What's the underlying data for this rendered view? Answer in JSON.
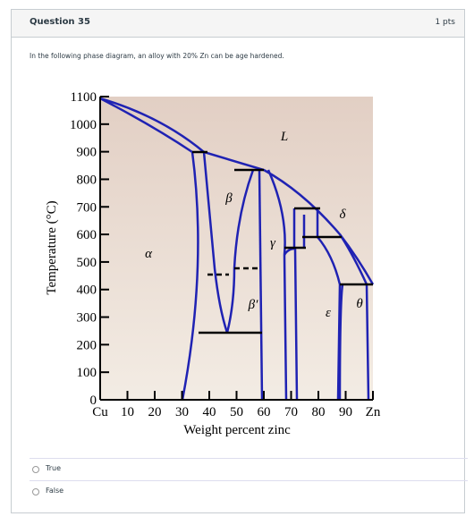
{
  "question": {
    "title": "Question 35",
    "points": "1 pts",
    "prompt": "In the following phase diagram, an alloy with 20% Zn can be age hardened."
  },
  "figure": {
    "y_label": "Temperature (°C)",
    "x_label": "Weight percent zinc",
    "xlim": [
      0,
      100
    ],
    "ylim": [
      0,
      1100
    ],
    "xticks": [
      {
        "value": 0,
        "label": "Cu"
      },
      10,
      20,
      30,
      40,
      50,
      60,
      70,
      80,
      90,
      {
        "value": 100,
        "label": "Zn"
      }
    ],
    "yticks": [
      0,
      100,
      200,
      300,
      400,
      500,
      600,
      700,
      800,
      900,
      1000,
      1100
    ],
    "phase_labels": [
      "L",
      "α",
      "β",
      "γ",
      "δ",
      "β′",
      "ε",
      "θ"
    ]
  },
  "options": [
    "True",
    "False"
  ]
}
